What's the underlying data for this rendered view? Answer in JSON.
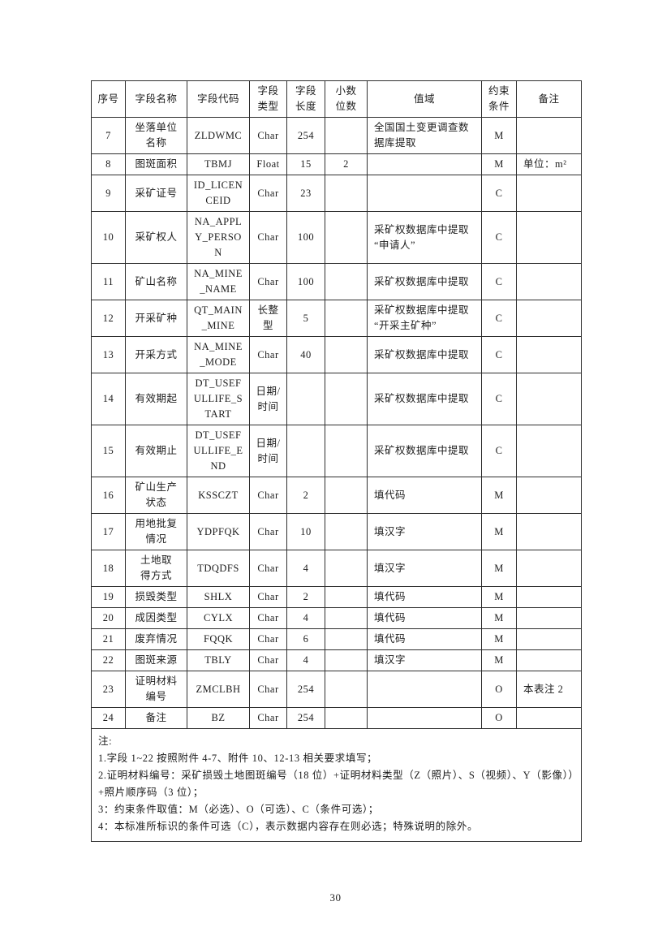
{
  "page": {
    "number": "30"
  },
  "table": {
    "headers": [
      "序号",
      "字段名称",
      "字段代码",
      "字段\n类型",
      "字段\n长度",
      "小数\n位数",
      "值域",
      "约束\n条件",
      "备注"
    ],
    "rows": [
      {
        "no": "7",
        "name": "坐落单位\n名称",
        "code": "ZLDWMC",
        "type": "Char",
        "length": "254",
        "decimals": "",
        "domain": "全国国土变更调查数\n据库提取",
        "constraint": "M",
        "remark": ""
      },
      {
        "no": "8",
        "name": "图斑面积",
        "code": "TBMJ",
        "type": "Float",
        "length": "15",
        "decimals": "2",
        "domain": "",
        "constraint": "M",
        "remark": "单位：m²"
      },
      {
        "no": "9",
        "name": "采矿证号",
        "code": "ID_LICEN\nCEID",
        "type": "Char",
        "length": "23",
        "decimals": "",
        "domain": "",
        "constraint": "C",
        "remark": ""
      },
      {
        "no": "10",
        "name": "采矿权人",
        "code": "NA_APPL\nY_PERSO\nN",
        "type": "Char",
        "length": "100",
        "decimals": "",
        "domain": "采矿权数据库中提取\n“申请人”",
        "constraint": "C",
        "remark": ""
      },
      {
        "no": "11",
        "name": "矿山名称",
        "code": "NA_MINE\n_NAME",
        "type": "Char",
        "length": "100",
        "decimals": "",
        "domain": "采矿权数据库中提取",
        "constraint": "C",
        "remark": ""
      },
      {
        "no": "12",
        "name": "开采矿种",
        "code": "QT_MAIN\n_MINE",
        "type": "长整\n型",
        "length": "5",
        "decimals": "",
        "domain": "采矿权数据库中提取\n“开采主矿种”",
        "constraint": "C",
        "remark": ""
      },
      {
        "no": "13",
        "name": "开采方式",
        "code": "NA_MINE\n_MODE",
        "type": "Char",
        "length": "40",
        "decimals": "",
        "domain": "采矿权数据库中提取",
        "constraint": "C",
        "remark": ""
      },
      {
        "no": "14",
        "name": "有效期起",
        "code": "DT_USEF\nULLIFE_S\nTART",
        "type": "日期/\n时间",
        "length": "",
        "decimals": "",
        "domain": "采矿权数据库中提取",
        "constraint": "C",
        "remark": ""
      },
      {
        "no": "15",
        "name": "有效期止",
        "code": "DT_USEF\nULLIFE_E\nND",
        "type": "日期/\n时间",
        "length": "",
        "decimals": "",
        "domain": "采矿权数据库中提取",
        "constraint": "C",
        "remark": ""
      },
      {
        "no": "16",
        "name": "矿山生产\n状态",
        "code": "KSSCZT",
        "type": "Char",
        "length": "2",
        "decimals": "",
        "domain": "填代码",
        "constraint": "M",
        "remark": ""
      },
      {
        "no": "17",
        "name": "用地批复\n情况",
        "code": "YDPFQK",
        "type": "Char",
        "length": "10",
        "decimals": "",
        "domain": "填汉字",
        "constraint": "M",
        "remark": ""
      },
      {
        "no": "18",
        "name": "土地取\n得方式",
        "code": "TDQDFS",
        "type": "Char",
        "length": "4",
        "decimals": "",
        "domain": "填汉字",
        "constraint": "M",
        "remark": ""
      },
      {
        "no": "19",
        "name": "损毁类型",
        "code": "SHLX",
        "type": "Char",
        "length": "2",
        "decimals": "",
        "domain": "填代码",
        "constraint": "M",
        "remark": ""
      },
      {
        "no": "20",
        "name": "成因类型",
        "code": "CYLX",
        "type": "Char",
        "length": "4",
        "decimals": "",
        "domain": "填代码",
        "constraint": "M",
        "remark": ""
      },
      {
        "no": "21",
        "name": "废弃情况",
        "code": "FQQK",
        "type": "Char",
        "length": "6",
        "decimals": "",
        "domain": "填代码",
        "constraint": "M",
        "remark": ""
      },
      {
        "no": "22",
        "name": "图斑来源",
        "code": "TBLY",
        "type": "Char",
        "length": "4",
        "decimals": "",
        "domain": "填汉字",
        "constraint": "M",
        "remark": ""
      },
      {
        "no": "23",
        "name": "证明材料\n编号",
        "code": "ZMCLBH",
        "type": "Char",
        "length": "254",
        "decimals": "",
        "domain": "",
        "constraint": "O",
        "remark": "本表注 2"
      },
      {
        "no": "24",
        "name": "备注",
        "code": "BZ",
        "type": "Char",
        "length": "254",
        "decimals": "",
        "domain": "",
        "constraint": "O",
        "remark": ""
      }
    ],
    "notes": [
      "注:",
      "1.字段 1~22 按照附件 4-7、附件 10、12-13 相关要求填写；",
      "2.证明材料编号：采矿损毁土地图斑编号（18 位）+证明材料类型（Z（照片）、S（视频）、Y（影像））+照片顺序码（3 位）；",
      "3：约束条件取值：M（必选）、O（可选）、C（条件可选）；",
      "4：本标准所标识的条件可选（C），表示数据内容存在则必选；特殊说明的除外。"
    ]
  }
}
